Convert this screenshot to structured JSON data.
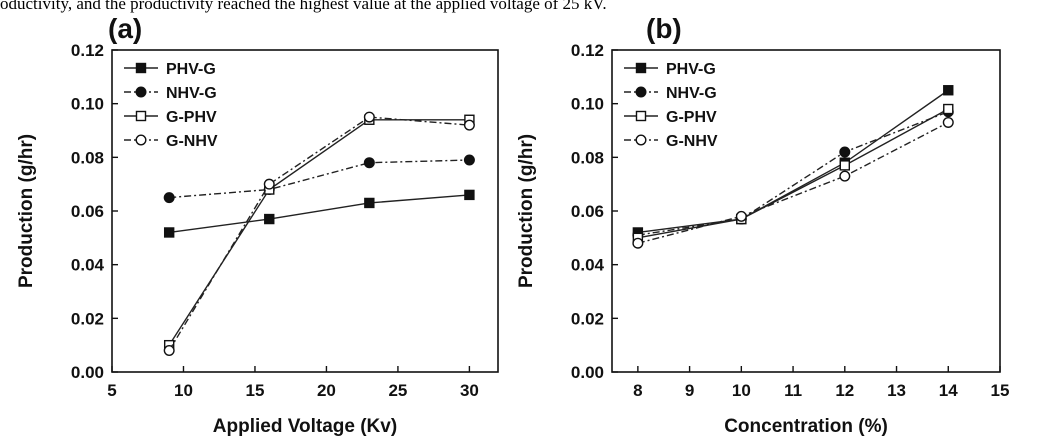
{
  "caption_fragment": "oductivity, and the productivity reached the highest value at the applied voltage of 25 kV.",
  "chart_data": [
    {
      "type": "line",
      "panel_label": "(a)",
      "xlabel": "Applied Voltage (Kv)",
      "ylabel": "Production (g/hr)",
      "xlim": [
        5,
        32
      ],
      "ylim": [
        0,
        0.12
      ],
      "xticks": [
        5,
        10,
        15,
        20,
        25,
        30
      ],
      "yticks": [
        "0.00",
        "0.02",
        "0.04",
        "0.06",
        "0.08",
        "0.10",
        "0.12"
      ],
      "legend_position": "top-left",
      "series": [
        {
          "name": "PHV-G",
          "marker": "square-filled",
          "dash": "solid",
          "x": [
            9,
            16,
            23,
            30
          ],
          "y": [
            0.052,
            0.057,
            0.063,
            0.066
          ]
        },
        {
          "name": "NHV-G",
          "marker": "circle-filled",
          "dash": "dashdot",
          "x": [
            9,
            16,
            23,
            30
          ],
          "y": [
            0.065,
            0.068,
            0.078,
            0.079
          ]
        },
        {
          "name": "G-PHV",
          "marker": "square-open",
          "dash": "solid",
          "x": [
            9,
            16,
            23,
            30
          ],
          "y": [
            0.01,
            0.068,
            0.094,
            0.094
          ]
        },
        {
          "name": "G-NHV",
          "marker": "circle-open",
          "dash": "dashdot",
          "x": [
            9,
            16,
            23,
            30
          ],
          "y": [
            0.008,
            0.07,
            0.095,
            0.092
          ]
        }
      ]
    },
    {
      "type": "line",
      "panel_label": "(b)",
      "xlabel": "Concentration (%)",
      "ylabel": "Production (g/hr)",
      "xlim": [
        7.5,
        15
      ],
      "ylim": [
        0,
        0.12
      ],
      "xticks": [
        8,
        9,
        10,
        11,
        12,
        13,
        14,
        15
      ],
      "yticks": [
        "0.00",
        "0.02",
        "0.04",
        "0.06",
        "0.08",
        "0.10",
        "0.12"
      ],
      "legend_position": "top-left",
      "series": [
        {
          "name": "PHV-G",
          "marker": "square-filled",
          "dash": "solid",
          "x": [
            8,
            10,
            12,
            14
          ],
          "y": [
            0.052,
            0.057,
            0.078,
            0.105
          ]
        },
        {
          "name": "NHV-G",
          "marker": "circle-filled",
          "dash": "dashdot",
          "x": [
            8,
            10,
            12,
            14
          ],
          "y": [
            0.051,
            0.057,
            0.082,
            0.097
          ]
        },
        {
          "name": "G-PHV",
          "marker": "square-open",
          "dash": "solid",
          "x": [
            8,
            10,
            12,
            14
          ],
          "y": [
            0.05,
            0.057,
            0.077,
            0.098
          ]
        },
        {
          "name": "G-NHV",
          "marker": "circle-open",
          "dash": "dashdot",
          "x": [
            8,
            10,
            12,
            14
          ],
          "y": [
            0.048,
            0.058,
            0.073,
            0.093
          ]
        }
      ]
    }
  ]
}
